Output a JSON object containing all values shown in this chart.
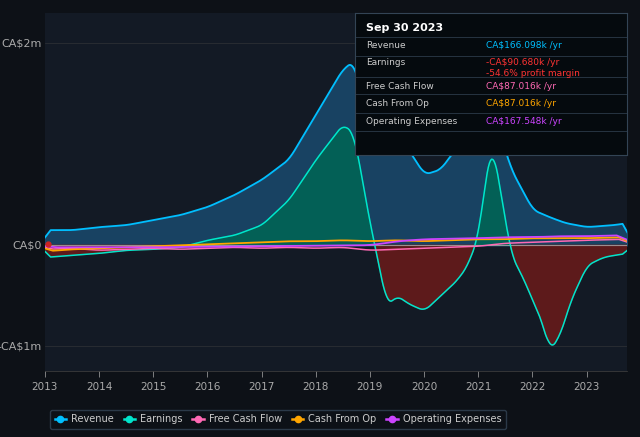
{
  "bg_color": "#0d1117",
  "plot_bg_color": "#131a25",
  "title": "Sep 30 2023",
  "info_box_rows": [
    {
      "label": "Revenue",
      "value": "CA$166.098k /yr",
      "value_color": "#00bfff"
    },
    {
      "label": "Earnings",
      "value": "-CA$90.680k /yr",
      "value_color": "#ff3333"
    },
    {
      "label": "",
      "value": "-54.6% profit margin",
      "value_color": "#ff3333"
    },
    {
      "label": "Free Cash Flow",
      "value": "CA$87.016k /yr",
      "value_color": "#ff69b4"
    },
    {
      "label": "Cash From Op",
      "value": "CA$87.016k /yr",
      "value_color": "#ffa500"
    },
    {
      "label": "Operating Expenses",
      "value": "CA$167.548k /yr",
      "value_color": "#cc44ff"
    }
  ],
  "ylabel_top": "CA$2m",
  "ylabel_bottom": "-CA$1m",
  "ylabel_zero": "CA$0",
  "xmin": 2013.0,
  "xmax": 2023.75,
  "ymin": -1.25,
  "ymax": 2.3,
  "series_colors": {
    "revenue": "#00bfff",
    "earnings": "#00e5cc",
    "free_cash_flow": "#ff69b4",
    "cash_from_op": "#ffa500",
    "operating_expenses": "#cc44ff"
  },
  "fill_revenue_color": "#1a4a6e",
  "fill_earnings_pos_color": "#006655",
  "fill_earnings_neg_color": "#6b1a1a",
  "legend_items": [
    {
      "label": "Revenue",
      "color": "#00bfff"
    },
    {
      "label": "Earnings",
      "color": "#00e5cc"
    },
    {
      "label": "Free Cash Flow",
      "color": "#ff69b4"
    },
    {
      "label": "Cash From Op",
      "color": "#ffa500"
    },
    {
      "label": "Operating Expenses",
      "color": "#cc44ff"
    }
  ]
}
